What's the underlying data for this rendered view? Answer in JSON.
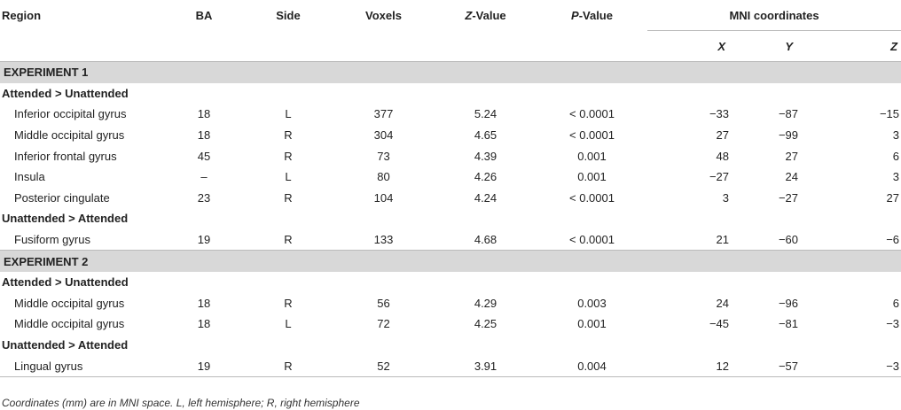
{
  "headers": {
    "region": "Region",
    "ba": "BA",
    "side": "Side",
    "voxels": "Voxels",
    "z_value_italic": "Z",
    "z_value_rest": "-Value",
    "p_value_italic": "P",
    "p_value_rest": "-Value",
    "mni": "MNI coordinates",
    "x": "X",
    "y": "Y",
    "z": "Z"
  },
  "experiments": [
    {
      "label": "EXPERIMENT 1",
      "groups": [
        {
          "label": "Attended > Unattended",
          "rows": [
            {
              "region": "Inferior occipital gyrus",
              "ba": "18",
              "side": "L",
              "voxels": "377",
              "z": "5.24",
              "p": "< 0.0001",
              "x": "−33",
              "y": "−87",
              "zc": "−15"
            },
            {
              "region": "Middle occipital gyrus",
              "ba": "18",
              "side": "R",
              "voxels": "304",
              "z": "4.65",
              "p": "< 0.0001",
              "x": "27",
              "y": "−99",
              "zc": "3"
            },
            {
              "region": "Inferior frontal gyrus",
              "ba": "45",
              "side": "R",
              "voxels": "73",
              "z": "4.39",
              "p": "0.001",
              "x": "48",
              "y": "27",
              "zc": "6"
            },
            {
              "region": "Insula",
              "ba": "–",
              "side": "L",
              "voxels": "80",
              "z": "4.26",
              "p": "0.001",
              "x": "−27",
              "y": "24",
              "zc": "3"
            },
            {
              "region": "Posterior cingulate",
              "ba": "23",
              "side": "R",
              "voxels": "104",
              "z": "4.24",
              "p": "< 0.0001",
              "x": "3",
              "y": "−27",
              "zc": "27"
            }
          ]
        },
        {
          "label": "Unattended > Attended",
          "rows": [
            {
              "region": "Fusiform gyrus",
              "ba": "19",
              "side": "R",
              "voxels": "133",
              "z": "4.68",
              "p": "< 0.0001",
              "x": "21",
              "y": "−60",
              "zc": "−6"
            }
          ]
        }
      ]
    },
    {
      "label": "EXPERIMENT 2",
      "groups": [
        {
          "label": "Attended > Unattended",
          "rows": [
            {
              "region": "Middle occipital gyrus",
              "ba": "18",
              "side": "R",
              "voxels": "56",
              "z": "4.29",
              "p": "0.003",
              "x": "24",
              "y": "−96",
              "zc": "6"
            },
            {
              "region": "Middle occipital gyrus",
              "ba": "18",
              "side": "L",
              "voxels": "72",
              "z": "4.25",
              "p": "0.001",
              "x": "−45",
              "y": "−81",
              "zc": "−3"
            }
          ]
        },
        {
          "label": "Unattended > Attended",
          "rows": [
            {
              "region": "Lingual gyrus",
              "ba": "19",
              "side": "R",
              "voxels": "52",
              "z": "3.91",
              "p": "0.004",
              "x": "12",
              "y": "−57",
              "zc": "−3"
            }
          ]
        }
      ]
    }
  ],
  "footnote": "Coordinates (mm) are in MNI space. L, left hemisphere; R, right hemisphere"
}
